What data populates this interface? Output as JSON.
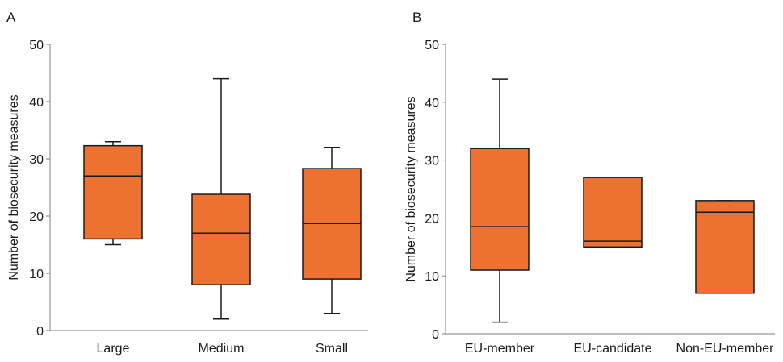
{
  "chart_data": [
    {
      "panel": "A",
      "type": "box",
      "xlabel": "",
      "ylabel": "Number of biosecurity measures",
      "ylim": [
        0,
        50
      ],
      "yticks": [
        "0",
        "10",
        "20",
        "30",
        "40",
        "50"
      ],
      "categories": [
        "Large",
        "Medium",
        "Small"
      ],
      "boxes": [
        {
          "min": 15,
          "q1": 16,
          "median": 27,
          "q3": 32.3,
          "max": 33
        },
        {
          "min": 2,
          "q1": 8,
          "median": 17,
          "q3": 23.8,
          "max": 44
        },
        {
          "min": 3,
          "q1": 9,
          "median": 18.7,
          "q3": 28.3,
          "max": 32
        }
      ],
      "box_color": "#ed7130",
      "grid": false
    },
    {
      "panel": "B",
      "type": "box",
      "xlabel": "",
      "ylabel": "Number of biosecurity measures",
      "ylim": [
        0,
        50
      ],
      "yticks": [
        "0",
        "10",
        "20",
        "30",
        "40",
        "50"
      ],
      "categories": [
        "EU-member",
        "EU-candidate",
        "Non-EU-member"
      ],
      "boxes": [
        {
          "min": 2,
          "q1": 11,
          "median": 18.5,
          "q3": 32,
          "max": 44
        },
        {
          "min": 15,
          "q1": 15,
          "median": 16,
          "q3": 27,
          "max": 27
        },
        {
          "min": 7,
          "q1": 7,
          "median": 21,
          "q3": 23,
          "max": 23
        }
      ],
      "box_color": "#ed7130",
      "grid": false
    }
  ]
}
